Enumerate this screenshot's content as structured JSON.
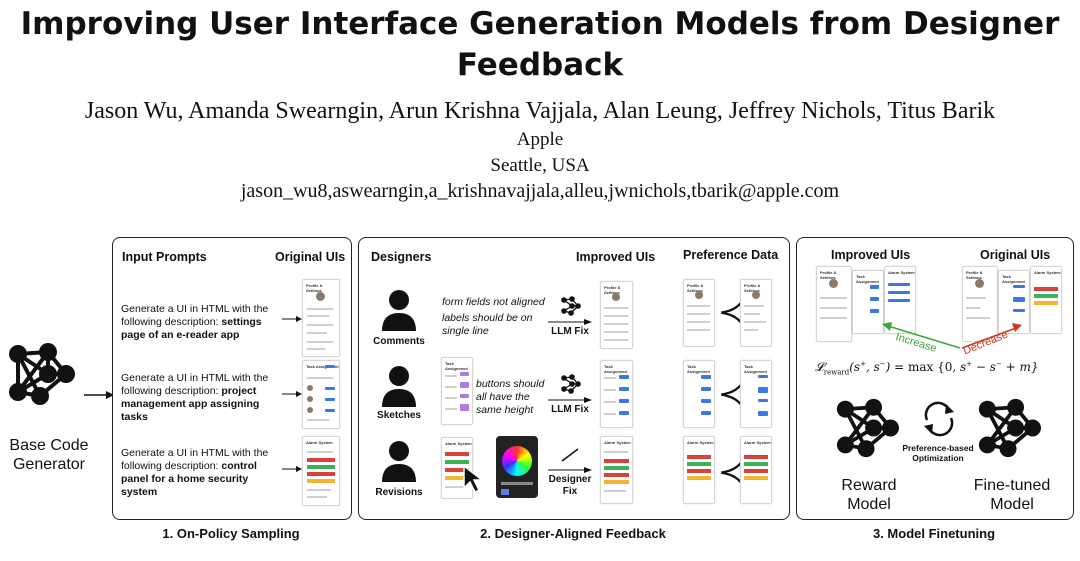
{
  "title": "Improving User Interface Generation Models from Designer Feedback",
  "authors": "Jason Wu, Amanda Swearngin, Arun Krishna Vajjala, Alan Leung, Jeffrey Nichols, Titus Barik",
  "affiliation": {
    "org": "Apple",
    "location": "Seattle, USA"
  },
  "emails": "jason_wu8,aswearngin,a_krishnavajjala,alleu,jwnichols,tbarik@apple.com",
  "base_generator": {
    "label": "Base Code Generator"
  },
  "panel1": {
    "header_left": "Input Prompts",
    "header_right": "Original UIs",
    "caption": "1. On-Policy Sampling",
    "prompt_prefix": "Generate a UI in HTML with the following description:",
    "prompts": [
      "settings page of an e-reader app",
      "project management app assigning tasks",
      "control panel for a home security system"
    ]
  },
  "panel2": {
    "header_left": "Designers",
    "header_mid": "Improved UIs",
    "header_right": "Preference Data",
    "caption": "2. Designer-Aligned Feedback",
    "rows": [
      {
        "label": "Comments",
        "feedback1": "form fields not aligned",
        "feedback2": "labels should be on single line",
        "action": "LLM Fix"
      },
      {
        "label": "Sketches",
        "feedback1": "buttons should all have the same height",
        "action": "LLM Fix"
      },
      {
        "label": "Revisions",
        "action": "Designer Fix"
      }
    ],
    "pref_symbol": "≺"
  },
  "panel3": {
    "header_left": "Improved UIs",
    "header_right": "Original UIs",
    "caption": "3. Model Finetuning",
    "increase": "Increase",
    "decrease": "Decrease",
    "optimization": "Preference-based Optimization",
    "reward_model": "Reward Model",
    "finetuned_model": "Fine-tuned Model"
  },
  "ui_mockups": {
    "settings": "Profile & Settings",
    "project": "Task Assignment",
    "security": "Alarm System"
  },
  "colors": {
    "accent": "#3b78e7",
    "increase": "#3aa53a",
    "decrease": "#d03a1c",
    "border": "#222222"
  }
}
